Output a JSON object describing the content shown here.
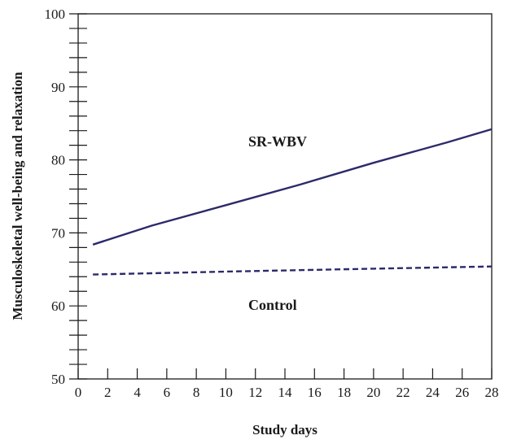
{
  "chart_data": {
    "type": "line",
    "title": "",
    "xlabel": "Study days",
    "ylabel": "Musculoskeletal well-being and relaxation",
    "xlim": [
      0,
      28
    ],
    "ylim": [
      50,
      100
    ],
    "x_ticks": [
      0,
      2,
      4,
      6,
      8,
      10,
      12,
      14,
      16,
      18,
      20,
      22,
      24,
      26,
      28
    ],
    "y_ticks": [
      50,
      60,
      70,
      80,
      90,
      100
    ],
    "y_minor_step": 2,
    "grid": false,
    "legend": "none",
    "series": [
      {
        "name": "SR-WBV",
        "style": "solid",
        "color": "#2b2a6b",
        "x": [
          1,
          5,
          10,
          15,
          20,
          25,
          28
        ],
        "y": [
          68.4,
          71.0,
          73.8,
          76.6,
          79.6,
          82.4,
          84.2
        ]
      },
      {
        "name": "Control",
        "style": "dashed",
        "color": "#2b2a6b",
        "x": [
          1,
          10,
          20,
          28
        ],
        "y": [
          64.3,
          64.7,
          65.1,
          65.4
        ]
      }
    ],
    "annotations": [
      {
        "text": "SR-WBV",
        "series": 0
      },
      {
        "text": "Control",
        "series": 1
      }
    ]
  },
  "colors": {
    "axis": "#1a1a1a",
    "line": "#2b2a6b"
  }
}
